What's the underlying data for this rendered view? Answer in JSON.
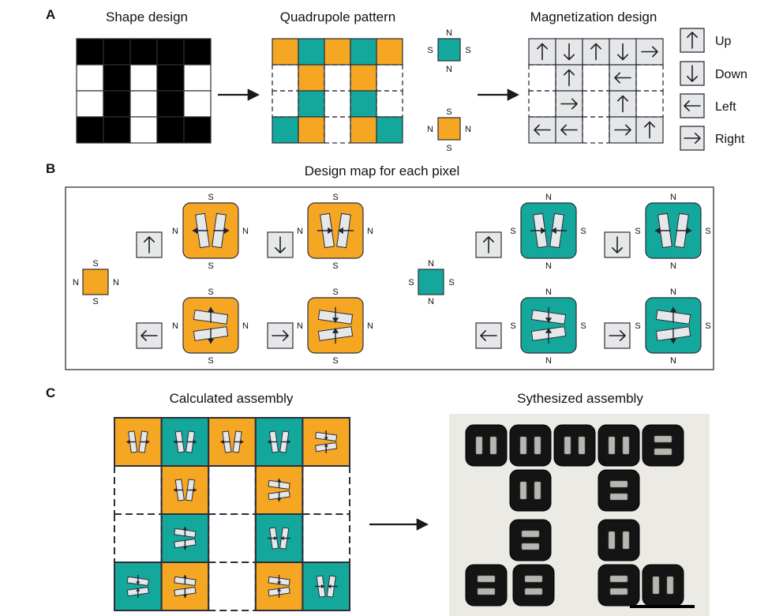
{
  "panels": {
    "a": {
      "letter": "A",
      "shape_title": "Shape design",
      "quad_title": "Quadrupole pattern",
      "mag_title": "Magnetization design",
      "shape_grid": [
        [
          1,
          1,
          1,
          1,
          1
        ],
        [
          0,
          1,
          0,
          1,
          0
        ],
        [
          0,
          1,
          0,
          1,
          0
        ],
        [
          1,
          1,
          0,
          1,
          1
        ]
      ],
      "quad_grid": [
        [
          "O",
          "T",
          "O",
          "T",
          "O"
        ],
        [
          "_",
          "O",
          "_",
          "O",
          "_"
        ],
        [
          "_",
          "T",
          "_",
          "T",
          "_"
        ],
        [
          "T",
          "O",
          "_",
          "O",
          "T"
        ]
      ],
      "mag_grid": [
        [
          "U",
          "D",
          "U",
          "D",
          "R"
        ],
        [
          "_",
          "U",
          "_",
          "L",
          "_"
        ],
        [
          "_",
          "R",
          "_",
          "U",
          "_"
        ],
        [
          "L",
          "L",
          "_",
          "R",
          "U"
        ]
      ],
      "teal_key": {
        "top": "N",
        "bottom": "N",
        "left": "S",
        "right": "S"
      },
      "orange_key": {
        "top": "S",
        "bottom": "S",
        "left": "N",
        "right": "N"
      },
      "legend": [
        {
          "dir": "U",
          "label": "Up"
        },
        {
          "dir": "D",
          "label": "Down"
        },
        {
          "dir": "L",
          "label": "Left"
        },
        {
          "dir": "R",
          "label": "Right"
        }
      ]
    },
    "b": {
      "letter": "B",
      "title": "Design map for each pixel",
      "orange_pole": {
        "top": "S",
        "bottom": "S",
        "left": "N",
        "right": "N"
      },
      "teal_pole": {
        "top": "N",
        "bottom": "N",
        "left": "S",
        "right": "S"
      }
    },
    "c": {
      "letter": "C",
      "calc_title": "Calculated assembly",
      "synth_title": "Sythesized assembly"
    }
  },
  "colors": {
    "orange": "#F5A623",
    "teal": "#14A89C",
    "arrow_box": "#E6E7E9",
    "outline": "#2B2F3A",
    "photo_bg": "#ECEAE4",
    "magnet_body": "#141414"
  }
}
